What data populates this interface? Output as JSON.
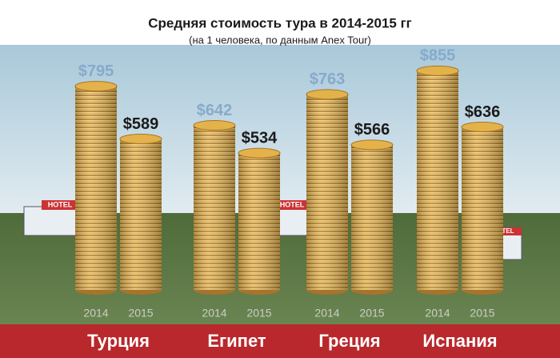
{
  "chart_data": {
    "type": "coin-stacks",
    "title": "Средняя стоимость тура в 2014-2015 гг",
    "subtitle": "(на 1 человека, по данным Anex Tour)",
    "categories": [
      "Турция",
      "Египет",
      "Греция",
      "Испания"
    ],
    "series": [
      {
        "name": "2014",
        "color": "#86aacb",
        "values": [
          795,
          642,
          763,
          855
        ],
        "value_labels": [
          "$795",
          "$642",
          "$763",
          "$855"
        ]
      },
      {
        "name": "2015",
        "color": "#1a1a1a",
        "values": [
          589,
          534,
          566,
          636
        ],
        "value_labels": [
          "$589",
          "$534",
          "$566",
          "$636"
        ]
      }
    ],
    "coin_color": "#e3b24a",
    "hotel_signs": [
      "HOTEL",
      "HOTEL",
      "TEL"
    ]
  }
}
